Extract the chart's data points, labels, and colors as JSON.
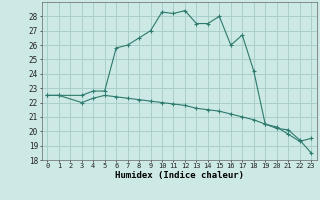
{
  "xlabel": "Humidex (Indice chaleur)",
  "background_color": "#cce9e5",
  "grid_color": "#aacfcb",
  "line_color": "#2d7a6e",
  "xlim": [
    -0.5,
    23.5
  ],
  "ylim": [
    18,
    29
  ],
  "yticks": [
    18,
    19,
    20,
    21,
    22,
    23,
    24,
    25,
    26,
    27,
    28
  ],
  "xticks": [
    0,
    1,
    2,
    3,
    4,
    5,
    6,
    7,
    8,
    9,
    10,
    11,
    12,
    13,
    14,
    15,
    16,
    17,
    18,
    19,
    20,
    21,
    22,
    23
  ],
  "series1_x": [
    0,
    1,
    3,
    4,
    5,
    6,
    7,
    8,
    9,
    10,
    11,
    12,
    13,
    14,
    15,
    16,
    17,
    18,
    19,
    20,
    21,
    22,
    23
  ],
  "series1_y": [
    22.5,
    22.5,
    22.5,
    22.8,
    22.8,
    25.8,
    26.0,
    26.5,
    27.0,
    28.3,
    28.2,
    28.4,
    27.5,
    27.5,
    28.0,
    26.0,
    26.7,
    24.2,
    20.5,
    20.3,
    19.8,
    19.3,
    19.5
  ],
  "series2_x": [
    0,
    1,
    3,
    4,
    5,
    6,
    7,
    8,
    9,
    10,
    11,
    12,
    13,
    14,
    15,
    16,
    17,
    18,
    19,
    20,
    21,
    22,
    23
  ],
  "series2_y": [
    22.5,
    22.5,
    22.0,
    22.3,
    22.5,
    22.4,
    22.3,
    22.2,
    22.1,
    22.0,
    21.9,
    21.8,
    21.6,
    21.5,
    21.4,
    21.2,
    21.0,
    20.8,
    20.5,
    20.2,
    20.1,
    19.4,
    18.5
  ]
}
